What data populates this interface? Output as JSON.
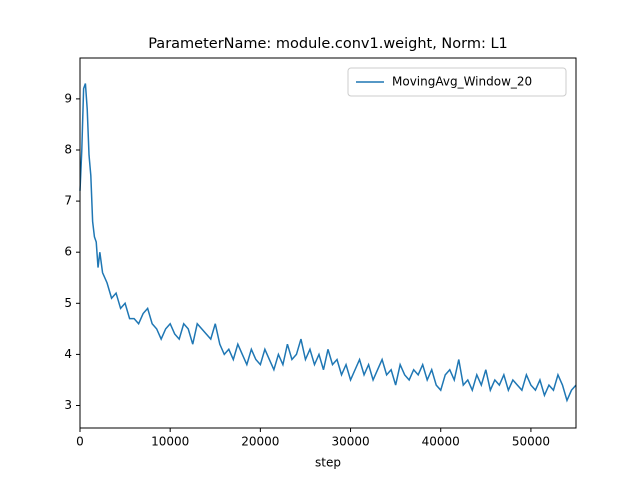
{
  "chart_data": {
    "type": "line",
    "title": "ParameterName: module.conv1.weight, Norm: L1",
    "xlabel": "step",
    "x": [
      0,
      200,
      400,
      600,
      800,
      1000,
      1200,
      1400,
      1600,
      1800,
      2000,
      2200,
      2500,
      3000,
      3500,
      4000,
      4500,
      5000,
      5500,
      6000,
      6500,
      7000,
      7500,
      8000,
      8500,
      9000,
      9500,
      10000,
      10500,
      11000,
      11500,
      12000,
      12500,
      13000,
      13500,
      14000,
      14500,
      15000,
      15500,
      16000,
      16500,
      17000,
      17500,
      18000,
      18500,
      19000,
      19500,
      20000,
      20500,
      21000,
      21500,
      22000,
      22500,
      23000,
      23500,
      24000,
      24500,
      25000,
      25500,
      26000,
      26500,
      27000,
      27500,
      28000,
      28500,
      29000,
      29500,
      30000,
      30500,
      31000,
      31500,
      32000,
      32500,
      33000,
      33500,
      34000,
      34500,
      35000,
      35500,
      36000,
      36500,
      37000,
      37500,
      38000,
      38500,
      39000,
      39500,
      40000,
      40500,
      41000,
      41500,
      42000,
      42500,
      43000,
      43500,
      44000,
      44500,
      45000,
      45500,
      46000,
      46500,
      47000,
      47500,
      48000,
      48500,
      49000,
      49500,
      50000,
      50500,
      51000,
      51500,
      52000,
      52500,
      53000,
      53500,
      54000,
      54500,
      55000
    ],
    "series": [
      {
        "name": "MovingAvg_Window_20",
        "color": "#1f77b4",
        "values": [
          7.2,
          8.0,
          9.2,
          9.3,
          8.8,
          7.9,
          7.5,
          6.6,
          6.3,
          6.2,
          5.7,
          6.0,
          5.6,
          5.4,
          5.1,
          5.2,
          4.9,
          5.0,
          4.7,
          4.7,
          4.6,
          4.8,
          4.9,
          4.6,
          4.5,
          4.3,
          4.5,
          4.6,
          4.4,
          4.3,
          4.6,
          4.5,
          4.2,
          4.6,
          4.5,
          4.4,
          4.3,
          4.6,
          4.2,
          4.0,
          4.1,
          3.9,
          4.2,
          4.0,
          3.8,
          4.1,
          3.9,
          3.8,
          4.1,
          3.9,
          3.7,
          4.0,
          3.8,
          4.2,
          3.9,
          4.0,
          4.3,
          3.9,
          4.1,
          3.8,
          4.0,
          3.7,
          4.1,
          3.8,
          3.9,
          3.6,
          3.8,
          3.5,
          3.7,
          3.9,
          3.6,
          3.8,
          3.5,
          3.7,
          3.9,
          3.6,
          3.7,
          3.4,
          3.8,
          3.6,
          3.5,
          3.7,
          3.6,
          3.8,
          3.5,
          3.7,
          3.4,
          3.3,
          3.6,
          3.7,
          3.5,
          3.9,
          3.4,
          3.5,
          3.3,
          3.6,
          3.4,
          3.7,
          3.3,
          3.5,
          3.4,
          3.6,
          3.3,
          3.5,
          3.4,
          3.3,
          3.6,
          3.4,
          3.3,
          3.5,
          3.2,
          3.4,
          3.3,
          3.6,
          3.4,
          3.1,
          3.3,
          3.4
        ]
      }
    ],
    "xlim": [
      0,
      55000
    ],
    "ylim": [
      2.56,
      9.8
    ],
    "xticks": [
      0,
      10000,
      20000,
      30000,
      40000,
      50000
    ],
    "yticks": [
      3,
      4,
      5,
      6,
      7,
      8,
      9
    ],
    "legend": "upper right"
  }
}
